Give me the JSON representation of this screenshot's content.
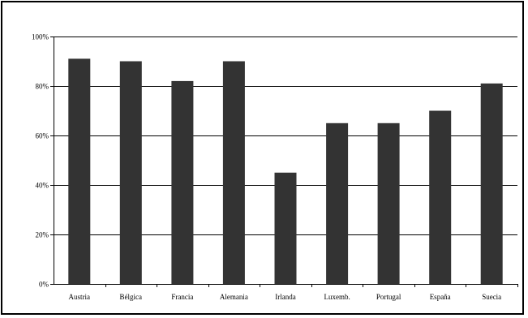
{
  "chart_data": {
    "type": "bar",
    "categories": [
      "Austria",
      "Bélgica",
      "Francia",
      "Alemania",
      "Irlanda",
      "Luxemb.",
      "Portugal",
      "España",
      "Suecia"
    ],
    "values": [
      91,
      90,
      82,
      90,
      45,
      65,
      65,
      70,
      81
    ],
    "ylim": [
      0,
      100
    ],
    "yticks": [
      0,
      20,
      40,
      60,
      80,
      100
    ],
    "ytick_labels": [
      "0%",
      "20%",
      "40%",
      "60%",
      "80%",
      "100%"
    ],
    "grid": true,
    "legend": "none",
    "title": "",
    "xlabel": "",
    "ylabel": "",
    "bar_color": "#333333",
    "grid_color": "#000000"
  }
}
